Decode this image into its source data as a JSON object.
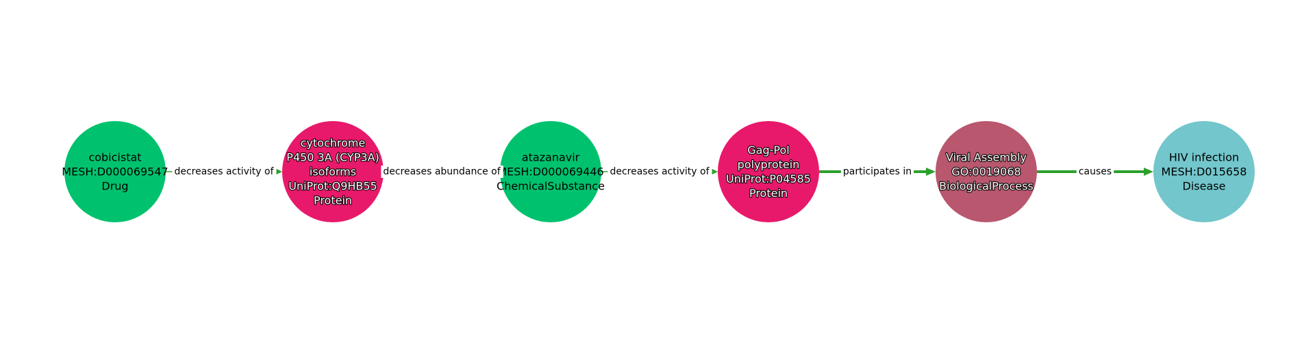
{
  "diagram": {
    "nodes": [
      {
        "id": "n1",
        "lines": [
          "cobicistat",
          "MESH:D000069547",
          "Drug"
        ],
        "color": "#00c26e",
        "text_style": "dark"
      },
      {
        "id": "n2",
        "lines": [
          "cytochrome",
          "P450 3A (CYP3A)",
          "isoforms",
          "UniProt:Q9HB55",
          "Protein"
        ],
        "color": "#e8196a",
        "text_style": "light"
      },
      {
        "id": "n3",
        "lines": [
          "atazanavir",
          "MESH:D000069446",
          "ChemicalSubstance"
        ],
        "color": "#00c26e",
        "text_style": "dark"
      },
      {
        "id": "n4",
        "lines": [
          "Gag-Pol",
          "polyprotein",
          "UniProt:P04585",
          "Protein"
        ],
        "color": "#e8196a",
        "text_style": "light"
      },
      {
        "id": "n5",
        "lines": [
          "Viral Assembly",
          "GO:0019068",
          "BiologicalProcess"
        ],
        "color": "#b8576e",
        "text_style": "light"
      },
      {
        "id": "n6",
        "lines": [
          "HIV infection",
          "MESH:D015658",
          "Disease"
        ],
        "color": "#72c6cc",
        "text_style": "dark"
      }
    ],
    "edges": [
      {
        "from": "n1",
        "to": "n2",
        "label": "decreases activity of",
        "weight": "thin"
      },
      {
        "from": "n2",
        "to": "n3",
        "label": "decreases abundance of",
        "weight": "thin"
      },
      {
        "from": "n3",
        "to": "n4",
        "label": "decreases activity of",
        "weight": "thin"
      },
      {
        "from": "n4",
        "to": "n5",
        "label": "participates in",
        "weight": "thick"
      },
      {
        "from": "n5",
        "to": "n6",
        "label": "causes",
        "weight": "thick"
      }
    ],
    "edge_color": "#2ca02c"
  }
}
